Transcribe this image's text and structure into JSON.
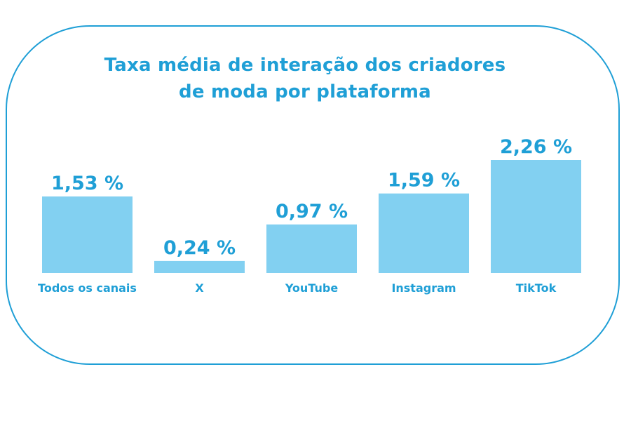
{
  "title_line1": "Taxa média de interação dos criadores",
  "title_line2": "de moda por plataforma",
  "colors": {
    "accent": "#1f9fd6",
    "bar": "#82d0f1"
  },
  "chart_data": {
    "type": "bar",
    "title": "Taxa média de interação dos criadores de moda por plataforma",
    "categories": [
      "Todos os canais",
      "X",
      "YouTube",
      "Instagram",
      "TikTok"
    ],
    "values": [
      1.53,
      0.24,
      0.97,
      1.59,
      2.26
    ],
    "value_labels": [
      "1,53 %",
      "0,24 %",
      "0,97 %",
      "1,59 %",
      "2,26 %"
    ],
    "xlabel": "",
    "ylabel": "",
    "ylim": [
      0,
      2.26
    ]
  }
}
